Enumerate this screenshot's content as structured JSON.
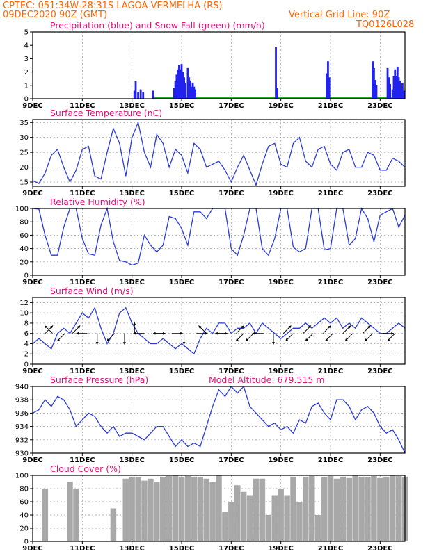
{
  "header": {
    "location": "CPTEC:  051:34W-28:31S  LAGOA VERMELHA (RS)",
    "run": "09DEC2020 90Z (GMT)",
    "grid_note": "Vertical Grid Line: 90Z",
    "model_code": "TQ0126L028"
  },
  "colors": {
    "header": "#ff6600",
    "panel_title": "#e0127a",
    "line": "#2a3bd9",
    "precip": "#2222ee",
    "snow": "#22aa22",
    "cloud": "#a8a8a8"
  },
  "x_axis": {
    "tick_labels": [
      "9DEC",
      "11DEC",
      "13DEC",
      "15DEC",
      "17DEC",
      "19DEC",
      "21DEC",
      "23DEC"
    ],
    "tick_days": [
      0,
      2,
      4,
      6,
      8,
      10,
      12,
      14
    ],
    "range_days": [
      0,
      15
    ]
  },
  "panels": [
    {
      "id": "precip",
      "title": "Precipitation (blue) and Snow Fall (green) (mm/h)",
      "extra": ""
    },
    {
      "id": "temp",
      "title": "Surface Temperature (nC)",
      "extra": ""
    },
    {
      "id": "rh",
      "title": "Relative Humidity (%)",
      "extra": ""
    },
    {
      "id": "wind",
      "title": "Surface Wind (m/s)",
      "extra": ""
    },
    {
      "id": "pres",
      "title": "Surface Pressure (hPa)",
      "extra": "Model Altitude: 679.515  m"
    },
    {
      "id": "cloud",
      "title": "Cloud Cover (%)",
      "extra": ""
    }
  ],
  "chart_data": [
    {
      "type": "bar",
      "panel": "precip",
      "title": "Precipitation (blue) and Snow Fall (green) (mm/h)",
      "ylim": [
        0,
        5
      ],
      "yticks": [
        0,
        1,
        2,
        3,
        4,
        5
      ],
      "series": [
        {
          "name": "Precipitation",
          "points": [
            [
              4.1,
              0.6
            ],
            [
              4.15,
              1.3
            ],
            [
              4.25,
              0.5
            ],
            [
              4.35,
              0.7
            ],
            [
              4.45,
              0.5
            ],
            [
              4.85,
              0.6
            ],
            [
              5.7,
              0.8
            ],
            [
              5.75,
              1.3
            ],
            [
              5.8,
              1.8
            ],
            [
              5.85,
              2.2
            ],
            [
              5.9,
              2.5
            ],
            [
              5.95,
              2.2
            ],
            [
              6.0,
              2.6
            ],
            [
              6.05,
              2.0
            ],
            [
              6.1,
              1.6
            ],
            [
              6.15,
              1.2
            ],
            [
              6.25,
              2.3
            ],
            [
              6.3,
              1.6
            ],
            [
              6.35,
              1.3
            ],
            [
              6.4,
              0.9
            ],
            [
              6.45,
              1.2
            ],
            [
              6.5,
              0.9
            ],
            [
              6.55,
              0.7
            ],
            [
              9.8,
              3.9
            ],
            [
              9.85,
              0.8
            ],
            [
              11.85,
              1.9
            ],
            [
              11.9,
              2.8
            ],
            [
              11.95,
              1.6
            ],
            [
              13.7,
              2.8
            ],
            [
              13.75,
              2.3
            ],
            [
              13.8,
              1.4
            ],
            [
              13.85,
              1.0
            ],
            [
              14.3,
              2.3
            ],
            [
              14.35,
              1.6
            ],
            [
              14.4,
              1.1
            ],
            [
              14.5,
              0.7
            ],
            [
              14.55,
              1.7
            ],
            [
              14.6,
              2.2
            ],
            [
              14.65,
              1.7
            ],
            [
              14.7,
              2.4
            ],
            [
              14.75,
              1.6
            ],
            [
              14.8,
              1.3
            ],
            [
              14.85,
              0.8
            ],
            [
              14.9,
              1.2
            ],
            [
              14.95,
              0.6
            ]
          ]
        }
      ]
    },
    {
      "type": "line",
      "panel": "temp",
      "title": "Surface Temperature (nC)",
      "ylabel": "nC",
      "ylim": [
        13.6,
        36
      ],
      "yticks": [
        15,
        20,
        25,
        30,
        35
      ],
      "x": [
        0,
        0.25,
        0.5,
        0.75,
        1.0,
        1.25,
        1.5,
        1.75,
        2.0,
        2.25,
        2.5,
        2.75,
        3.0,
        3.25,
        3.5,
        3.75,
        4.0,
        4.25,
        4.5,
        4.75,
        5.0,
        5.25,
        5.5,
        5.75,
        6.0,
        6.25,
        6.5,
        6.75,
        7.0,
        7.25,
        7.5,
        7.75,
        8.0,
        8.25,
        8.5,
        8.75,
        9.0,
        9.25,
        9.5,
        9.75,
        10.0,
        10.25,
        10.5,
        10.75,
        11.0,
        11.25,
        11.5,
        11.75,
        12.0,
        12.25,
        12.5,
        12.75,
        13.0,
        13.25,
        13.5,
        13.75,
        14.0,
        14.25,
        14.5,
        14.75,
        15.0
      ],
      "values": [
        15.5,
        14.5,
        18,
        24,
        26,
        20,
        15,
        19,
        26,
        27,
        17,
        16,
        25,
        33,
        28,
        17,
        30,
        35,
        25,
        20,
        31,
        28,
        20,
        26,
        24,
        18,
        28,
        26,
        20,
        21,
        22,
        19,
        15,
        20,
        24,
        19,
        14,
        21,
        27,
        28,
        21,
        20,
        28,
        30,
        22,
        20,
        26,
        27,
        21,
        19,
        25,
        26,
        20,
        20,
        25,
        24,
        19,
        19,
        23,
        22,
        20
      ],
      "grid": true
    },
    {
      "type": "line",
      "panel": "rh",
      "title": "Relative Humidity (%)",
      "ylabel": "%",
      "ylim": [
        0,
        100
      ],
      "yticks": [
        0,
        20,
        40,
        60,
        80,
        100
      ],
      "x": [
        0,
        0.25,
        0.5,
        0.75,
        1.0,
        1.25,
        1.5,
        1.75,
        2.0,
        2.25,
        2.5,
        2.75,
        3.0,
        3.25,
        3.5,
        3.75,
        4.0,
        4.25,
        4.5,
        4.75,
        5.0,
        5.25,
        5.5,
        5.75,
        6.0,
        6.25,
        6.5,
        6.75,
        7.0,
        7.25,
        7.5,
        7.75,
        8.0,
        8.25,
        8.5,
        8.75,
        9.0,
        9.25,
        9.5,
        9.75,
        10.0,
        10.25,
        10.5,
        10.75,
        11.0,
        11.25,
        11.5,
        11.75,
        12.0,
        12.25,
        12.5,
        12.75,
        13.0,
        13.25,
        13.5,
        13.75,
        14.0,
        14.25,
        14.5,
        14.75,
        15.0
      ],
      "values": [
        100,
        99,
        60,
        30,
        30,
        72,
        100,
        100,
        55,
        32,
        30,
        75,
        100,
        50,
        22,
        20,
        15,
        18,
        60,
        45,
        35,
        45,
        88,
        85,
        70,
        45,
        95,
        95,
        85,
        100,
        100,
        100,
        40,
        30,
        60,
        100,
        100,
        40,
        30,
        55,
        100,
        100,
        42,
        35,
        40,
        100,
        100,
        38,
        40,
        100,
        100,
        45,
        55,
        100,
        85,
        50,
        90,
        95,
        100,
        72,
        90
      ],
      "grid": true
    },
    {
      "type": "line",
      "panel": "wind",
      "title": "Surface Wind (m/s)",
      "ylabel": "m/s",
      "ylim": [
        0,
        13
      ],
      "yticks": [
        0,
        2,
        4,
        6,
        8,
        10,
        12
      ],
      "x": [
        0,
        0.25,
        0.5,
        0.75,
        1.0,
        1.25,
        1.5,
        1.75,
        2.0,
        2.25,
        2.5,
        2.75,
        3.0,
        3.25,
        3.5,
        3.75,
        4.0,
        4.25,
        4.5,
        4.75,
        5.0,
        5.25,
        5.5,
        5.75,
        6.0,
        6.25,
        6.5,
        6.75,
        7.0,
        7.25,
        7.5,
        7.75,
        8.0,
        8.25,
        8.5,
        8.75,
        9.0,
        9.25,
        9.5,
        9.75,
        10.0,
        10.25,
        10.5,
        10.75,
        11.0,
        11.25,
        11.5,
        11.75,
        12.0,
        12.25,
        12.5,
        12.75,
        13.0,
        13.25,
        13.5,
        13.75,
        14.0,
        14.25,
        14.5,
        14.75,
        15.0
      ],
      "values": [
        4,
        5,
        4,
        3,
        6,
        7,
        6,
        8,
        10,
        9,
        11,
        7,
        4,
        6,
        10,
        11,
        8,
        6,
        5,
        4,
        4,
        5,
        4,
        3,
        4,
        3,
        2,
        5,
        7,
        6,
        8,
        8,
        6,
        7,
        7,
        8,
        6,
        8,
        7,
        6,
        5,
        6,
        7,
        7,
        8,
        7,
        8,
        9,
        8,
        9,
        7,
        8,
        7,
        9,
        8,
        7,
        6,
        6,
        7,
        8,
        7
      ],
      "grid": true,
      "vectors": [
        {
          "day": 0.5,
          "dir": "NE"
        },
        {
          "day": 0.8,
          "dir": "NW"
        },
        {
          "day": 1.3,
          "dir": "SW"
        },
        {
          "day": 1.6,
          "dir": "NE"
        },
        {
          "day": 2.2,
          "dir": "W"
        },
        {
          "day": 2.6,
          "dir": "S"
        },
        {
          "day": 3.3,
          "dir": "SW"
        },
        {
          "day": 3.7,
          "dir": "S"
        },
        {
          "day": 4.1,
          "dir": "N"
        },
        {
          "day": 4.5,
          "dir": "W"
        },
        {
          "day": 4.9,
          "dir": "E"
        },
        {
          "day": 5.3,
          "dir": "W"
        },
        {
          "day": 5.6,
          "dir": "E"
        },
        {
          "day": 6.1,
          "dir": "S"
        },
        {
          "day": 6.6,
          "dir": "E"
        },
        {
          "day": 7.0,
          "dir": "NW"
        },
        {
          "day": 7.4,
          "dir": "E"
        },
        {
          "day": 7.8,
          "dir": "W"
        },
        {
          "day": 8.2,
          "dir": "NE"
        },
        {
          "day": 8.5,
          "dir": "SW"
        },
        {
          "day": 8.9,
          "dir": "SW"
        },
        {
          "day": 9.3,
          "dir": "W"
        },
        {
          "day": 9.7,
          "dir": "S"
        },
        {
          "day": 10.1,
          "dir": "NE"
        },
        {
          "day": 10.5,
          "dir": "SW"
        },
        {
          "day": 10.9,
          "dir": "NE"
        },
        {
          "day": 11.3,
          "dir": "SW"
        },
        {
          "day": 11.7,
          "dir": "NE"
        },
        {
          "day": 12.1,
          "dir": "SW"
        },
        {
          "day": 12.5,
          "dir": "NE"
        },
        {
          "day": 12.9,
          "dir": "SW"
        },
        {
          "day": 13.3,
          "dir": "NE"
        },
        {
          "day": 13.7,
          "dir": "SW"
        },
        {
          "day": 14.1,
          "dir": "E"
        },
        {
          "day": 14.6,
          "dir": "SW"
        }
      ]
    },
    {
      "type": "line",
      "panel": "pres",
      "title": "Surface Pressure (hPa)",
      "ylabel": "hPa",
      "ylim": [
        930,
        940
      ],
      "yticks": [
        930,
        932,
        934,
        936,
        938,
        940
      ],
      "x": [
        0,
        0.25,
        0.5,
        0.75,
        1.0,
        1.25,
        1.5,
        1.75,
        2.0,
        2.25,
        2.5,
        2.75,
        3.0,
        3.25,
        3.5,
        3.75,
        4.0,
        4.25,
        4.5,
        4.75,
        5.0,
        5.25,
        5.5,
        5.75,
        6.0,
        6.25,
        6.5,
        6.75,
        7.0,
        7.25,
        7.5,
        7.75,
        8.0,
        8.25,
        8.5,
        8.75,
        9.0,
        9.25,
        9.5,
        9.75,
        10.0,
        10.25,
        10.5,
        10.75,
        11.0,
        11.25,
        11.5,
        11.75,
        12.0,
        12.25,
        12.5,
        12.75,
        13.0,
        13.25,
        13.5,
        13.75,
        14.0,
        14.25,
        14.5,
        14.75,
        15.0
      ],
      "values": [
        936,
        936.5,
        938,
        937,
        938.5,
        938,
        936.5,
        934,
        935,
        936,
        935.5,
        934,
        933,
        934,
        932.5,
        933,
        933,
        932.5,
        932,
        933,
        934,
        934,
        932.5,
        931,
        932,
        931,
        931.5,
        931,
        934,
        937,
        939.5,
        938.5,
        940,
        939,
        940,
        937,
        936,
        935,
        934,
        934.5,
        933.5,
        934,
        933,
        935,
        934.5,
        937,
        937.5,
        936,
        935,
        938,
        938,
        937,
        935,
        936.5,
        937,
        936,
        934,
        933,
        933.5,
        932,
        930
      ],
      "grid": true
    },
    {
      "type": "bar",
      "panel": "cloud",
      "title": "Cloud Cover (%)",
      "ylabel": "%",
      "ylim": [
        0,
        100
      ],
      "yticks": [
        0,
        20,
        40,
        60,
        80,
        100
      ],
      "x": [
        0,
        0.25,
        0.5,
        0.75,
        1.0,
        1.25,
        1.5,
        1.75,
        2.0,
        2.25,
        2.5,
        2.75,
        3.0,
        3.25,
        3.5,
        3.75,
        4.0,
        4.25,
        4.5,
        4.75,
        5.0,
        5.25,
        5.5,
        5.75,
        6.0,
        6.25,
        6.5,
        6.75,
        7.0,
        7.25,
        7.5,
        7.75,
        8.0,
        8.25,
        8.5,
        8.75,
        9.0,
        9.25,
        9.5,
        9.75,
        10.0,
        10.25,
        10.5,
        10.75,
        11.0,
        11.25,
        11.5,
        11.75,
        12.0,
        12.25,
        12.5,
        12.75,
        13.0,
        13.25,
        13.5,
        13.75,
        14.0,
        14.25,
        14.5,
        14.75,
        15.0
      ],
      "values": [
        0,
        0,
        80,
        0,
        0,
        0,
        90,
        80,
        0,
        0,
        0,
        0,
        0,
        50,
        0,
        95,
        98,
        97,
        92,
        95,
        90,
        98,
        99,
        100,
        98,
        99,
        98,
        97,
        95,
        90,
        100,
        45,
        60,
        85,
        75,
        70,
        95,
        95,
        40,
        70,
        80,
        70,
        98,
        60,
        98,
        99,
        40,
        97,
        99,
        95,
        98,
        96,
        100,
        98,
        97,
        99,
        96,
        98,
        100,
        99,
        98
      ],
      "grid": true
    }
  ]
}
